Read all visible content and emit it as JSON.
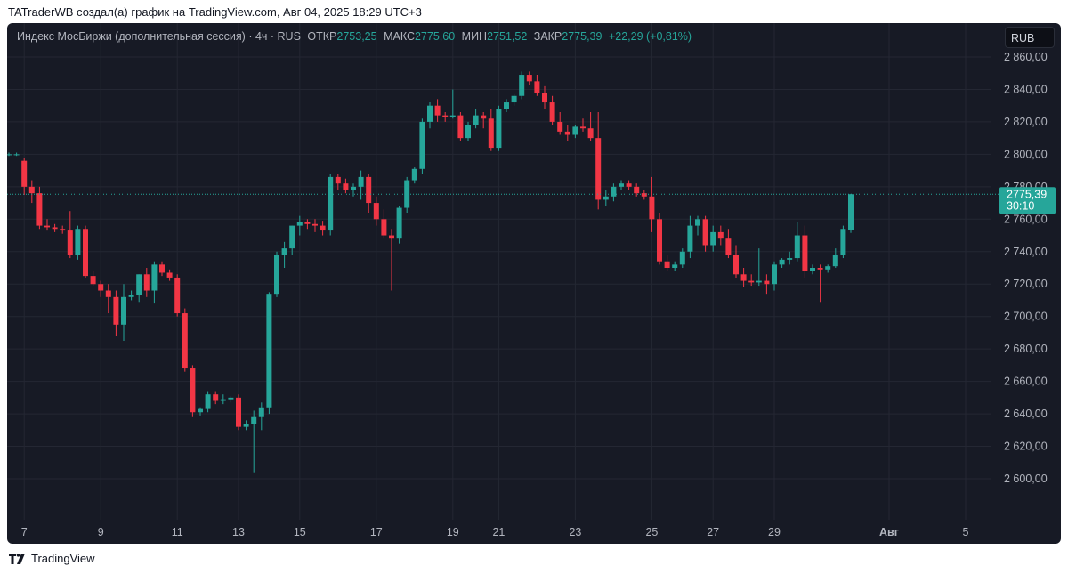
{
  "header": {
    "attribution": "TATraderWB создал(а) график на TradingView.com, Авг 04, 2025 18:29 UTC+3"
  },
  "legend": {
    "symbol": "Индекс МосБиржи (дополнительная сессия) · 4ч · RUS",
    "open_label": "ОТКР",
    "open": "2753,25",
    "high_label": "МАКС",
    "high": "2775,60",
    "low_label": "МИН",
    "low": "2751,52",
    "close_label": "ЗАКР",
    "close": "2775,39",
    "change": "+22,29 (+0,81%)"
  },
  "currency_button": "RUB",
  "price_badge": {
    "price": "2775,39",
    "countdown": "30:10"
  },
  "footer": {
    "brand": "TradingView"
  },
  "colors": {
    "background": "#171a25",
    "up": "#26a69a",
    "down": "#f23645",
    "grid": "#242733",
    "axis_text": "#b2b5be"
  },
  "icons": {
    "logo": "tradingview-logo-icon"
  },
  "chart_data": {
    "type": "candlestick",
    "title": "",
    "xlabel": "",
    "ylabel": "",
    "ylim": [
      2585,
      2865
    ],
    "y_ticks": [
      "2 600,00",
      "2 620,00",
      "2 640,00",
      "2 660,00",
      "2 680,00",
      "2 700,00",
      "2 720,00",
      "2 740,00",
      "2 760,00",
      "2 780,00",
      "2 800,00",
      "2 820,00",
      "2 840,00",
      "2 860,00"
    ],
    "y_tick_values": [
      2600,
      2620,
      2640,
      2660,
      2680,
      2700,
      2720,
      2740,
      2760,
      2780,
      2800,
      2820,
      2840,
      2860
    ],
    "x_ticks": [
      {
        "label": "7",
        "index": 2
      },
      {
        "label": "9",
        "index": 12
      },
      {
        "label": "11",
        "index": 22
      },
      {
        "label": "13",
        "index": 30
      },
      {
        "label": "15",
        "index": 38
      },
      {
        "label": "17",
        "index": 48
      },
      {
        "label": "19",
        "index": 58
      },
      {
        "label": "21",
        "index": 64
      },
      {
        "label": "23",
        "index": 74
      },
      {
        "label": "25",
        "index": 84
      },
      {
        "label": "27",
        "index": 92
      },
      {
        "label": "29",
        "index": 100
      },
      {
        "label": "Авг",
        "index": 115
      },
      {
        "label": "5",
        "index": 125
      }
    ],
    "last_price": 2775.39,
    "candles": [
      [
        2800,
        2801,
        2799,
        2800
      ],
      [
        2800,
        2801,
        2799,
        2800
      ],
      [
        2796,
        2798,
        2775,
        2780
      ],
      [
        2780,
        2784,
        2770,
        2776
      ],
      [
        2776,
        2780,
        2754,
        2756
      ],
      [
        2756,
        2760,
        2753,
        2755
      ],
      [
        2755,
        2757,
        2752,
        2754
      ],
      [
        2754,
        2756,
        2751,
        2753
      ],
      [
        2753,
        2765,
        2736,
        2738
      ],
      [
        2738,
        2756,
        2735,
        2754
      ],
      [
        2754,
        2756,
        2724,
        2725
      ],
      [
        2725,
        2728,
        2719,
        2720
      ],
      [
        2720,
        2722,
        2712,
        2716
      ],
      [
        2716,
        2720,
        2702,
        2712
      ],
      [
        2712,
        2716,
        2688,
        2695
      ],
      [
        2695,
        2720,
        2685,
        2712
      ],
      [
        2712,
        2716,
        2710,
        2713
      ],
      [
        2713,
        2726,
        2709,
        2726
      ],
      [
        2726,
        2730,
        2712,
        2716
      ],
      [
        2716,
        2734,
        2708,
        2732
      ],
      [
        2732,
        2734,
        2725,
        2727
      ],
      [
        2727,
        2729,
        2722,
        2724
      ],
      [
        2724,
        2726,
        2700,
        2702
      ],
      [
        2702,
        2705,
        2666,
        2668
      ],
      [
        2668,
        2670,
        2638,
        2641
      ],
      [
        2641,
        2644,
        2639,
        2643
      ],
      [
        2643,
        2654,
        2641,
        2652
      ],
      [
        2652,
        2654,
        2646,
        2648
      ],
      [
        2648,
        2652,
        2646,
        2649
      ],
      [
        2649,
        2651,
        2647,
        2650
      ],
      [
        2650,
        2652,
        2630,
        2632
      ],
      [
        2632,
        2636,
        2630,
        2634
      ],
      [
        2634,
        2642,
        2604,
        2638
      ],
      [
        2638,
        2647,
        2630,
        2644
      ],
      [
        2644,
        2715,
        2640,
        2714
      ],
      [
        2714,
        2740,
        2712,
        2738
      ],
      [
        2738,
        2746,
        2730,
        2742
      ],
      [
        2742,
        2756,
        2738,
        2756
      ],
      [
        2756,
        2762,
        2750,
        2758
      ],
      [
        2758,
        2760,
        2754,
        2757
      ],
      [
        2757,
        2760,
        2752,
        2756
      ],
      [
        2756,
        2759,
        2750,
        2753
      ],
      [
        2753,
        2788,
        2750,
        2786
      ],
      [
        2786,
        2788,
        2778,
        2782
      ],
      [
        2782,
        2785,
        2776,
        2778
      ],
      [
        2778,
        2782,
        2774,
        2780
      ],
      [
        2780,
        2790,
        2772,
        2786
      ],
      [
        2786,
        2788,
        2764,
        2770
      ],
      [
        2770,
        2774,
        2756,
        2760
      ],
      [
        2760,
        2766,
        2748,
        2750
      ],
      [
        2750,
        2754,
        2716,
        2748
      ],
      [
        2748,
        2768,
        2745,
        2767
      ],
      [
        2767,
        2786,
        2764,
        2784
      ],
      [
        2784,
        2792,
        2782,
        2791
      ],
      [
        2791,
        2822,
        2788,
        2820
      ],
      [
        2820,
        2832,
        2816,
        2830
      ],
      [
        2830,
        2834,
        2820,
        2824
      ],
      [
        2824,
        2826,
        2820,
        2823
      ],
      [
        2823,
        2840,
        2822,
        2824
      ],
      [
        2824,
        2826,
        2808,
        2810
      ],
      [
        2810,
        2820,
        2808,
        2818
      ],
      [
        2818,
        2828,
        2816,
        2824
      ],
      [
        2824,
        2826,
        2816,
        2822
      ],
      [
        2822,
        2828,
        2802,
        2804
      ],
      [
        2804,
        2830,
        2802,
        2828
      ],
      [
        2828,
        2834,
        2826,
        2832
      ],
      [
        2832,
        2837,
        2830,
        2836
      ],
      [
        2836,
        2851,
        2834,
        2849
      ],
      [
        2849,
        2851,
        2843,
        2845
      ],
      [
        2845,
        2849,
        2836,
        2838
      ],
      [
        2838,
        2842,
        2828,
        2832
      ],
      [
        2832,
        2836,
        2818,
        2820
      ],
      [
        2820,
        2826,
        2812,
        2814
      ],
      [
        2814,
        2818,
        2808,
        2812
      ],
      [
        2812,
        2818,
        2810,
        2817
      ],
      [
        2817,
        2822,
        2814,
        2816
      ],
      [
        2816,
        2826,
        2808,
        2810
      ],
      [
        2810,
        2826,
        2766,
        2772
      ],
      [
        2772,
        2778,
        2768,
        2774
      ],
      [
        2774,
        2782,
        2771,
        2780
      ],
      [
        2780,
        2784,
        2778,
        2782
      ],
      [
        2782,
        2784,
        2778,
        2780
      ],
      [
        2780,
        2782,
        2774,
        2776
      ],
      [
        2776,
        2778,
        2772,
        2774
      ],
      [
        2774,
        2786,
        2752,
        2760
      ],
      [
        2760,
        2764,
        2732,
        2734
      ],
      [
        2734,
        2738,
        2728,
        2730
      ],
      [
        2730,
        2734,
        2728,
        2732
      ],
      [
        2732,
        2742,
        2730,
        2740
      ],
      [
        2740,
        2762,
        2736,
        2756
      ],
      [
        2756,
        2762,
        2750,
        2760
      ],
      [
        2760,
        2762,
        2740,
        2744
      ],
      [
        2744,
        2756,
        2740,
        2752
      ],
      [
        2752,
        2756,
        2744,
        2748
      ],
      [
        2748,
        2754,
        2736,
        2738
      ],
      [
        2738,
        2744,
        2724,
        2726
      ],
      [
        2726,
        2730,
        2718,
        2722
      ],
      [
        2722,
        2726,
        2719,
        2721
      ],
      [
        2721,
        2742,
        2719,
        2722
      ],
      [
        2722,
        2726,
        2714,
        2720
      ],
      [
        2720,
        2734,
        2716,
        2732
      ],
      [
        2732,
        2736,
        2730,
        2735
      ],
      [
        2735,
        2740,
        2732,
        2736
      ],
      [
        2736,
        2758,
        2734,
        2750
      ],
      [
        2750,
        2756,
        2724,
        2728
      ],
      [
        2728,
        2732,
        2726,
        2730
      ],
      [
        2730,
        2732,
        2709,
        2729
      ],
      [
        2729,
        2732,
        2727,
        2731
      ],
      [
        2731,
        2742,
        2730,
        2738
      ],
      [
        2738,
        2756,
        2736,
        2754
      ],
      [
        2753.25,
        2775.6,
        2751.52,
        2775.39
      ]
    ]
  }
}
